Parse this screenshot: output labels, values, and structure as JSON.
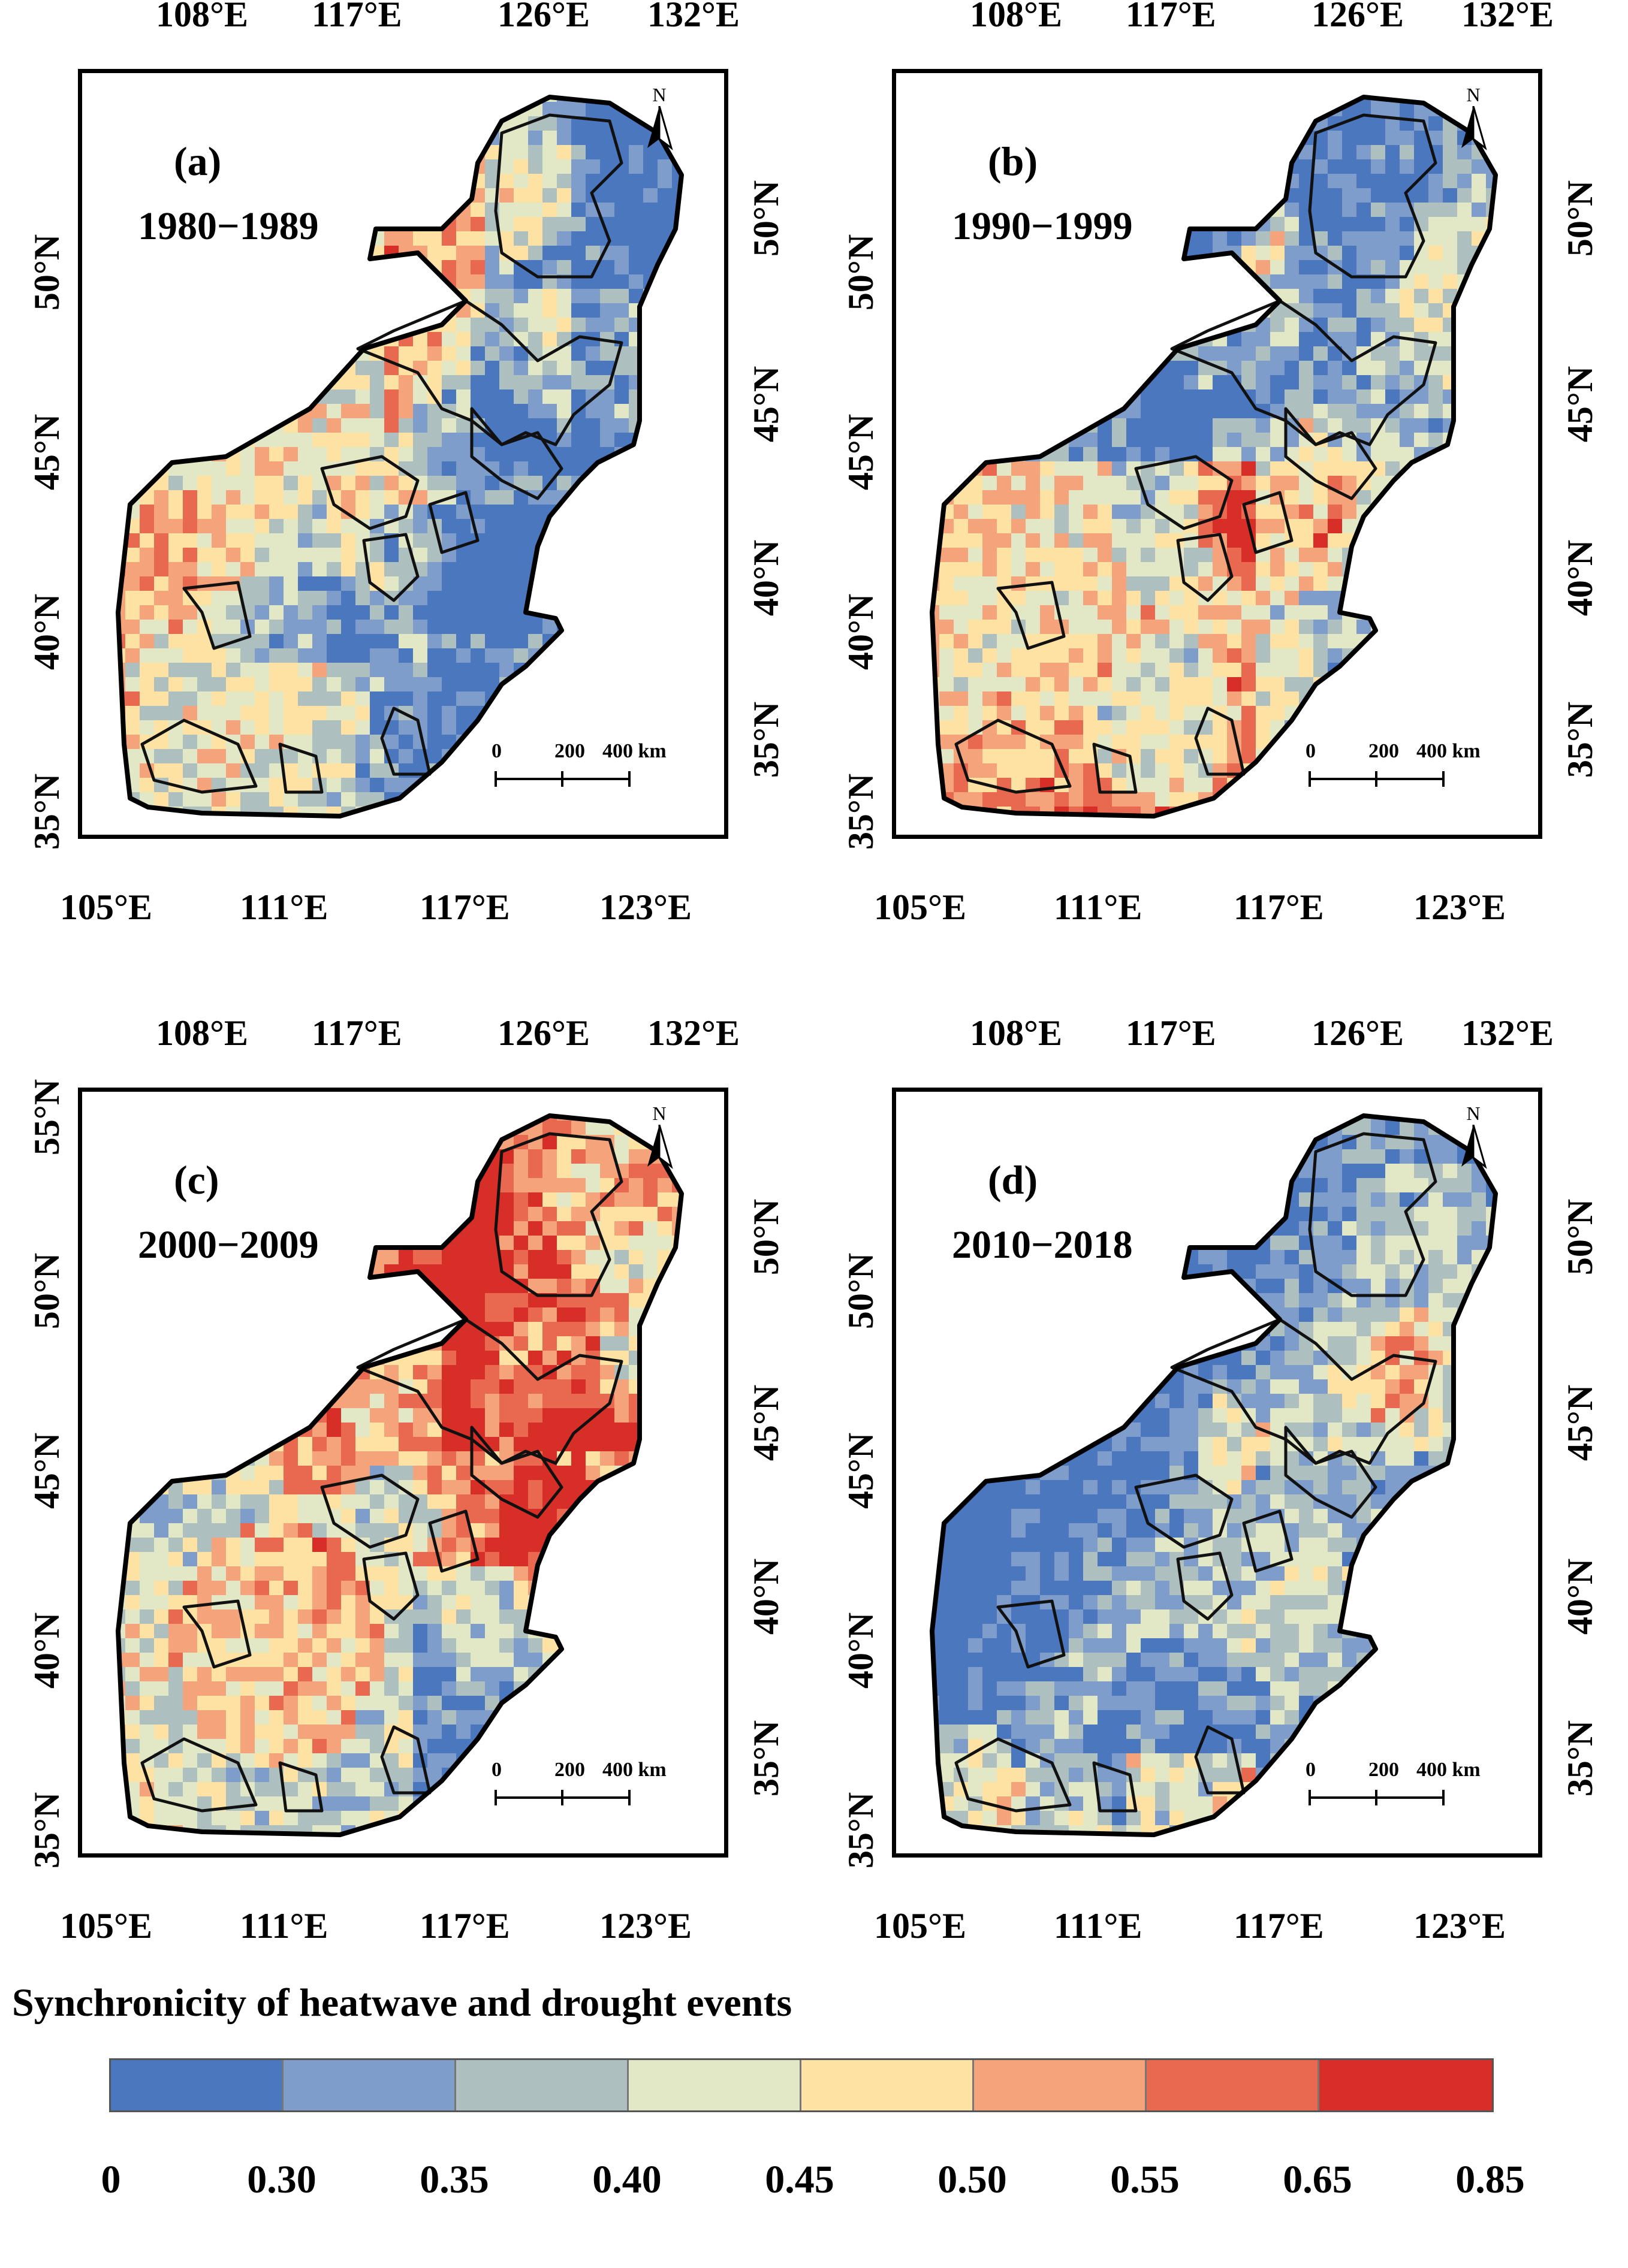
{
  "panels": [
    {
      "letter": "(a)",
      "period": "1980−1989",
      "pattern": "a"
    },
    {
      "letter": "(b)",
      "period": "1990−1999",
      "pattern": "b"
    },
    {
      "letter": "(c)",
      "period": "2000−2009",
      "pattern": "c"
    },
    {
      "letter": "(d)",
      "period": "2010−2018",
      "pattern": "d"
    }
  ],
  "axes": {
    "top_lon": [
      "108°E",
      "117°E",
      "126°E",
      "132°E"
    ],
    "bottom_lon": [
      "105°E",
      "111°E",
      "117°E",
      "123°E"
    ],
    "left_lat": [
      "35°N",
      "40°N",
      "45°N",
      "50°N"
    ],
    "left_lat_c": [
      "35°N",
      "40°N",
      "45°N",
      "50°N",
      "55°N"
    ],
    "right_lat": [
      "35°N",
      "40°N",
      "45°N",
      "50°N"
    ]
  },
  "north_arrow": "N",
  "scale_bar": {
    "zero": "0",
    "mid": "200",
    "end": "400 km"
  },
  "legend": {
    "title": "Synchronicity of heatwave and drought events",
    "ticks": [
      "0",
      "0.30",
      "0.35",
      "0.40",
      "0.45",
      "0.50",
      "0.55",
      "0.65",
      "0.85"
    ],
    "colors": [
      "#4a77be",
      "#7f9dcb",
      "#aebfbf",
      "#e2e8c5",
      "#fde2a3",
      "#f4a37a",
      "#e8694f",
      "#d72f27"
    ]
  }
}
